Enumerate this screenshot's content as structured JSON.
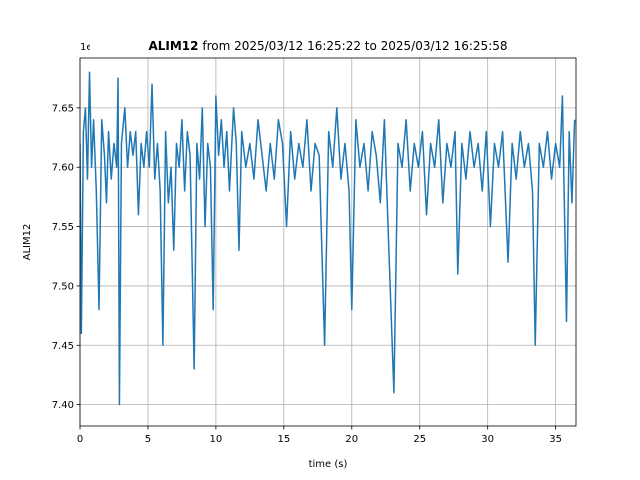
{
  "chart_data": {
    "type": "line",
    "title_name": "ALIM12",
    "title": "from 2025/03/12 16:25:22 to 2025/03/12 16:25:58",
    "offset_text": "1e6",
    "xlabel": "time (s)",
    "ylabel": "ALIM12",
    "xlim": [
      0,
      36.5
    ],
    "ylim": [
      7.382,
      7.692
    ],
    "xticks": [
      0,
      5,
      10,
      15,
      20,
      25,
      30,
      35
    ],
    "yticks": [
      {
        "value": 7.4,
        "label": "7.40"
      },
      {
        "value": 7.45,
        "label": "7.45"
      },
      {
        "value": 7.5,
        "label": "7.50"
      },
      {
        "value": 7.55,
        "label": "7.55"
      },
      {
        "value": 7.6,
        "label": "7.60"
      },
      {
        "value": 7.65,
        "label": "7.65"
      }
    ],
    "grid": true,
    "series": [
      {
        "color": "#1f77b4",
        "x": [
          0,
          0.1,
          0.25,
          0.4,
          0.55,
          0.7,
          0.85,
          1.0,
          1.2,
          1.4,
          1.6,
          1.8,
          1.95,
          2.1,
          2.3,
          2.5,
          2.7,
          2.8,
          2.9,
          3.05,
          3.3,
          3.5,
          3.7,
          3.9,
          4.1,
          4.3,
          4.5,
          4.7,
          4.9,
          5.1,
          5.3,
          5.5,
          5.7,
          5.9,
          6.1,
          6.3,
          6.5,
          6.7,
          6.9,
          7.1,
          7.3,
          7.5,
          7.7,
          7.9,
          8.1,
          8.4,
          8.6,
          8.8,
          9.0,
          9.2,
          9.4,
          9.6,
          9.8,
          10.0,
          10.2,
          10.4,
          10.6,
          10.8,
          11.0,
          11.3,
          11.5,
          11.7,
          11.9,
          12.2,
          12.5,
          12.8,
          13.1,
          13.4,
          13.7,
          14.0,
          14.3,
          14.6,
          14.9,
          15.2,
          15.5,
          15.8,
          16.1,
          16.4,
          16.7,
          17.0,
          17.3,
          17.6,
          18.0,
          18.3,
          18.6,
          18.9,
          19.2,
          19.5,
          19.8,
          20.0,
          20.3,
          20.6,
          20.9,
          21.2,
          21.5,
          21.8,
          22.1,
          22.4,
          22.7,
          23.1,
          23.4,
          23.7,
          24.0,
          24.3,
          24.6,
          24.9,
          25.2,
          25.5,
          25.8,
          26.1,
          26.4,
          26.7,
          27.0,
          27.3,
          27.6,
          27.8,
          28.1,
          28.4,
          28.7,
          29.0,
          29.3,
          29.6,
          29.9,
          30.2,
          30.5,
          30.8,
          31.1,
          31.5,
          31.8,
          32.1,
          32.4,
          32.7,
          33.0,
          33.3,
          33.5,
          33.8,
          34.1,
          34.4,
          34.7,
          35.0,
          35.3,
          35.5,
          35.8,
          36.0,
          36.2,
          36.4
        ],
        "values": [
          7.62,
          7.46,
          7.63,
          7.65,
          7.59,
          7.68,
          7.6,
          7.64,
          7.58,
          7.48,
          7.64,
          7.61,
          7.57,
          7.63,
          7.59,
          7.62,
          7.6,
          7.675,
          7.4,
          7.62,
          7.65,
          7.6,
          7.63,
          7.61,
          7.63,
          7.56,
          7.62,
          7.6,
          7.63,
          7.6,
          7.67,
          7.59,
          7.62,
          7.58,
          7.45,
          7.63,
          7.57,
          7.6,
          7.53,
          7.62,
          7.6,
          7.64,
          7.58,
          7.63,
          7.61,
          7.43,
          7.62,
          7.59,
          7.65,
          7.55,
          7.62,
          7.6,
          7.48,
          7.66,
          7.61,
          7.64,
          7.6,
          7.63,
          7.58,
          7.65,
          7.62,
          7.53,
          7.63,
          7.6,
          7.62,
          7.59,
          7.64,
          7.61,
          7.58,
          7.62,
          7.59,
          7.64,
          7.62,
          7.55,
          7.63,
          7.59,
          7.62,
          7.6,
          7.64,
          7.58,
          7.62,
          7.61,
          7.45,
          7.63,
          7.6,
          7.65,
          7.59,
          7.62,
          7.58,
          7.48,
          7.64,
          7.6,
          7.62,
          7.58,
          7.63,
          7.61,
          7.57,
          7.64,
          7.54,
          7.41,
          7.62,
          7.6,
          7.64,
          7.58,
          7.62,
          7.6,
          7.63,
          7.56,
          7.62,
          7.6,
          7.64,
          7.57,
          7.62,
          7.6,
          7.63,
          7.51,
          7.62,
          7.59,
          7.63,
          7.6,
          7.62,
          7.58,
          7.63,
          7.55,
          7.62,
          7.6,
          7.63,
          7.52,
          7.62,
          7.59,
          7.63,
          7.6,
          7.62,
          7.58,
          7.45,
          7.62,
          7.6,
          7.63,
          7.59,
          7.62,
          7.6,
          7.66,
          7.47,
          7.63,
          7.57,
          7.64
        ]
      }
    ]
  }
}
